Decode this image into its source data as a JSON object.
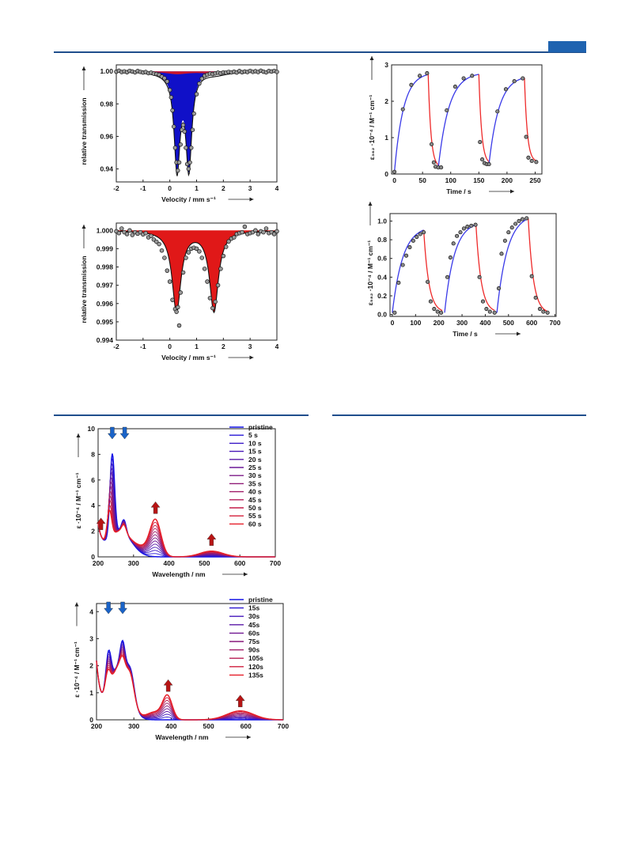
{
  "page": {
    "colors": {
      "rule": "#1f4e8c",
      "tab": "#1f63b0",
      "blue": "#1010c8",
      "red": "#e01818",
      "arrow_blue": "#1a63c8",
      "arrow_red": "#b81414"
    }
  },
  "chart_data": [
    {
      "id": "mossbauer_top",
      "type": "scatter",
      "xlabel": "Velocity / mm s⁻¹",
      "ylabel": "relative transmission",
      "xlim": [
        -2,
        4
      ],
      "ylim": [
        0.932,
        1.004
      ],
      "xticks": [
        "-2",
        "-1",
        "0",
        "1",
        "2",
        "3",
        "4"
      ],
      "yticks": [
        "0.94",
        "0.96",
        "0.98",
        "1.00"
      ],
      "baseline": 1.0,
      "blue_doublet": {
        "depth": 0.058,
        "centers": [
          0.27,
          0.71
        ],
        "hwhm": 0.13
      },
      "red_doublet": {
        "depth": 0.0016,
        "centers": [
          0.27,
          1.75
        ],
        "hwhm": 0.5
      },
      "points": [
        [
          -2,
          0.9998
        ],
        [
          -1.9,
          1.0004
        ],
        [
          -1.8,
          0.9996
        ],
        [
          -1.7,
          1.0
        ],
        [
          -1.6,
          0.9995
        ],
        [
          -1.5,
          1.0003
        ],
        [
          -1.4,
          0.9999
        ],
        [
          -1.3,
          0.9994
        ],
        [
          -1.2,
          1.0002
        ],
        [
          -1.1,
          0.9997
        ],
        [
          -1.0,
          0.9993
        ],
        [
          -0.9,
          0.9996
        ],
        [
          -0.8,
          0.9989
        ],
        [
          -0.7,
          0.9992
        ],
        [
          -0.6,
          0.9986
        ],
        [
          -0.5,
          0.9984
        ],
        [
          -0.4,
          0.9979
        ],
        [
          -0.3,
          0.9968
        ],
        [
          -0.2,
          0.9958
        ],
        [
          -0.1,
          0.9938
        ],
        [
          0.0,
          0.9885
        ],
        [
          0.05,
          0.984
        ],
        [
          0.1,
          0.976
        ],
        [
          0.15,
          0.966
        ],
        [
          0.2,
          0.953
        ],
        [
          0.25,
          0.944
        ],
        [
          0.3,
          0.939
        ],
        [
          0.35,
          0.944
        ],
        [
          0.4,
          0.955
        ],
        [
          0.45,
          0.964
        ],
        [
          0.5,
          0.967
        ],
        [
          0.55,
          0.963
        ],
        [
          0.6,
          0.953
        ],
        [
          0.65,
          0.943
        ],
        [
          0.7,
          0.94
        ],
        [
          0.75,
          0.944
        ],
        [
          0.8,
          0.953
        ],
        [
          0.85,
          0.964
        ],
        [
          0.9,
          0.974
        ],
        [
          1.0,
          0.986
        ],
        [
          1.1,
          0.9925
        ],
        [
          1.2,
          0.9955
        ],
        [
          1.3,
          0.9973
        ],
        [
          1.4,
          0.998
        ],
        [
          1.5,
          0.9986
        ],
        [
          1.6,
          0.9984
        ],
        [
          1.7,
          0.9988
        ],
        [
          1.8,
          0.9992
        ],
        [
          1.9,
          0.9988
        ],
        [
          2.0,
          0.9994
        ],
        [
          2.1,
          0.9992
        ],
        [
          2.2,
          0.9997
        ],
        [
          2.3,
          0.9994
        ],
        [
          2.4,
          0.9998
        ],
        [
          2.5,
          0.9993
        ],
        [
          2.6,
          1.0002
        ],
        [
          2.7,
          0.9995
        ],
        [
          2.8,
          0.9999
        ],
        [
          2.9,
          0.9996
        ],
        [
          3.0,
          1.0003
        ],
        [
          3.1,
          0.9997
        ],
        [
          3.2,
          1.0001
        ],
        [
          3.3,
          0.9996
        ],
        [
          3.4,
          1.0004
        ],
        [
          3.5,
          0.9998
        ],
        [
          3.6,
          0.9994
        ],
        [
          3.7,
          1.0002
        ],
        [
          3.8,
          0.9999
        ],
        [
          3.9,
          1.0003
        ],
        [
          4.0,
          0.9997
        ]
      ]
    },
    {
      "id": "mossbauer_bottom",
      "type": "scatter",
      "xlabel": "Velocity / mm s⁻¹",
      "ylabel": "relative transmission",
      "xlim": [
        -2,
        4
      ],
      "ylim": [
        0.994,
        1.0004
      ],
      "xticks": [
        "-2",
        "-1",
        "0",
        "1",
        "2",
        "3",
        "4"
      ],
      "yticks": [
        "0.994",
        "0.995",
        "0.996",
        "0.997",
        "0.998",
        "0.999",
        "1.000"
      ],
      "baseline": 1.0,
      "red_doublet": {
        "depth": 0.0044,
        "centers": [
          0.25,
          1.65
        ],
        "hwhm": 0.2
      },
      "points": [
        [
          -2,
          0.99995
        ],
        [
          -1.9,
          0.99985
        ],
        [
          -1.8,
          1.0001
        ],
        [
          -1.7,
          0.9999
        ],
        [
          -1.6,
          0.9998
        ],
        [
          -1.5,
          1.0
        ],
        [
          -1.4,
          0.99975
        ],
        [
          -1.3,
          0.9999
        ],
        [
          -1.2,
          0.99982
        ],
        [
          -1.1,
          0.9999
        ],
        [
          -1.0,
          0.99978
        ],
        [
          -0.9,
          0.99985
        ],
        [
          -0.8,
          0.99962
        ],
        [
          -0.7,
          0.9997
        ],
        [
          -0.6,
          0.9995
        ],
        [
          -0.5,
          0.99938
        ],
        [
          -0.4,
          0.99925
        ],
        [
          -0.3,
          0.9989
        ],
        [
          -0.2,
          0.9985
        ],
        [
          -0.1,
          0.9978
        ],
        [
          0.0,
          0.9972
        ],
        [
          0.1,
          0.9962
        ],
        [
          0.2,
          0.9957
        ],
        [
          0.25,
          0.99555
        ],
        [
          0.3,
          0.9958
        ],
        [
          0.35,
          0.9948
        ],
        [
          0.4,
          0.9966
        ],
        [
          0.5,
          0.9977
        ],
        [
          0.6,
          0.9985
        ],
        [
          0.7,
          0.9988
        ],
        [
          0.8,
          0.999
        ],
        [
          0.9,
          0.99905
        ],
        [
          1.0,
          0.999
        ],
        [
          1.1,
          0.99885
        ],
        [
          1.2,
          0.9985
        ],
        [
          1.3,
          0.9979
        ],
        [
          1.4,
          0.9972
        ],
        [
          1.5,
          0.9963
        ],
        [
          1.6,
          0.99575
        ],
        [
          1.7,
          0.9961
        ],
        [
          1.8,
          0.997
        ],
        [
          1.9,
          0.9979
        ],
        [
          2.0,
          0.9986
        ],
        [
          2.1,
          0.9991
        ],
        [
          2.2,
          0.9994
        ],
        [
          2.3,
          0.99955
        ],
        [
          2.4,
          0.99962
        ],
        [
          2.5,
          0.9998
        ],
        [
          2.6,
          0.99985
        ],
        [
          2.7,
          0.9999
        ],
        [
          2.8,
          1.0002
        ],
        [
          2.9,
          0.9998
        ],
        [
          3.0,
          0.99985
        ],
        [
          3.1,
          0.9999
        ],
        [
          3.2,
          1.0
        ],
        [
          3.3,
          0.9998
        ],
        [
          3.4,
          0.99995
        ],
        [
          3.5,
          0.9999
        ],
        [
          3.6,
          1.0001
        ],
        [
          3.7,
          0.99985
        ],
        [
          3.8,
          0.9999
        ],
        [
          3.9,
          0.9998
        ],
        [
          4.0,
          0.99995
        ]
      ]
    },
    {
      "id": "kinetics_top",
      "type": "line",
      "xlabel": "Time / s",
      "ylabel": "ε₃₆₂ ·10⁻⁴ / M⁻¹ cm⁻¹",
      "xlim": [
        -5,
        262
      ],
      "ylim": [
        0,
        3
      ],
      "xticks": [
        0,
        50,
        100,
        150,
        200,
        250
      ],
      "yticks": [
        0,
        1,
        2,
        3
      ],
      "cycles": [
        {
          "on": [
            0,
            60
          ],
          "y0": 0.05,
          "ymax": 2.8,
          "tau": 16,
          "off_end": 78,
          "y_end": 0.18
        },
        {
          "on": [
            78,
            150
          ],
          "y0": 0.18,
          "ymax": 2.8,
          "tau": 19,
          "off_end": 168,
          "y_end": 0.27
        },
        {
          "on": [
            168,
            231
          ],
          "y0": 0.27,
          "ymax": 2.72,
          "tau": 18,
          "off_end": 252,
          "y_end": 0.33
        }
      ],
      "tau_off": 5,
      "points": [
        [
          0,
          0.06
        ],
        [
          15,
          1.78
        ],
        [
          30,
          2.45
        ],
        [
          45,
          2.7
        ],
        [
          58,
          2.77
        ],
        [
          66,
          0.82
        ],
        [
          70,
          0.32
        ],
        [
          73,
          0.2
        ],
        [
          78,
          0.18
        ],
        [
          83,
          0.18
        ],
        [
          93,
          1.75
        ],
        [
          108,
          2.4
        ],
        [
          123,
          2.63
        ],
        [
          138,
          2.7
        ],
        [
          152,
          0.88
        ],
        [
          156,
          0.4
        ],
        [
          160,
          0.3
        ],
        [
          164,
          0.27
        ],
        [
          168,
          0.27
        ],
        [
          183,
          1.72
        ],
        [
          198,
          2.33
        ],
        [
          213,
          2.55
        ],
        [
          228,
          2.63
        ],
        [
          234,
          1.02
        ],
        [
          238,
          0.45
        ],
        [
          244,
          0.36
        ],
        [
          252,
          0.33
        ]
      ]
    },
    {
      "id": "kinetics_bottom",
      "type": "line",
      "xlabel": "Time / s",
      "ylabel": "ε₅₈₂ ·10⁻⁴ / M⁻¹ cm⁻¹",
      "xlim": [
        -10,
        705
      ],
      "ylim": [
        -0.02,
        1.08
      ],
      "xticks": [
        0,
        100,
        200,
        300,
        400,
        500,
        600,
        700
      ],
      "yticks": [
        "0.0",
        "0.2",
        "0.4",
        "0.6",
        "0.8",
        "1.0"
      ],
      "cycles": [
        {
          "on": [
            0,
            135
          ],
          "y0": 0.02,
          "ymax": 0.95,
          "tau": 45,
          "off_end": 215,
          "y_end": 0.02
        },
        {
          "on": [
            225,
            360
          ],
          "y0": 0.02,
          "ymax": 1.0,
          "tau": 42,
          "off_end": 440,
          "y_end": 0.02
        },
        {
          "on": [
            450,
            585
          ],
          "y0": 0.02,
          "ymax": 1.08,
          "tau": 45,
          "off_end": 670,
          "y_end": 0.01
        }
      ],
      "tau_off": 22,
      "points": [
        [
          10,
          0.02
        ],
        [
          27,
          0.34
        ],
        [
          45,
          0.53
        ],
        [
          60,
          0.63
        ],
        [
          75,
          0.72
        ],
        [
          90,
          0.79
        ],
        [
          105,
          0.83
        ],
        [
          120,
          0.86
        ],
        [
          135,
          0.88
        ],
        [
          152,
          0.35
        ],
        [
          165,
          0.14
        ],
        [
          180,
          0.06
        ],
        [
          195,
          0.03
        ],
        [
          210,
          0.02
        ],
        [
          237,
          0.4
        ],
        [
          250,
          0.61
        ],
        [
          263,
          0.76
        ],
        [
          278,
          0.84
        ],
        [
          293,
          0.88
        ],
        [
          308,
          0.92
        ],
        [
          323,
          0.94
        ],
        [
          340,
          0.95
        ],
        [
          358,
          0.96
        ],
        [
          375,
          0.4
        ],
        [
          390,
          0.14
        ],
        [
          405,
          0.06
        ],
        [
          420,
          0.03
        ],
        [
          440,
          0.02
        ],
        [
          458,
          0.28
        ],
        [
          470,
          0.65
        ],
        [
          485,
          0.79
        ],
        [
          500,
          0.88
        ],
        [
          515,
          0.93
        ],
        [
          530,
          0.97
        ],
        [
          545,
          1.0
        ],
        [
          560,
          1.02
        ],
        [
          578,
          1.03
        ],
        [
          600,
          0.41
        ],
        [
          617,
          0.18
        ],
        [
          635,
          0.06
        ],
        [
          650,
          0.03
        ],
        [
          668,
          0.02
        ]
      ]
    },
    {
      "id": "uvvis_top",
      "type": "line",
      "xlabel": "Wavelength / nm",
      "ylabel": "ε ·10⁻⁴ / M⁻¹ cm⁻¹",
      "xlim": [
        200,
        700
      ],
      "ylim": [
        0,
        10
      ],
      "xticks": [
        200,
        300,
        400,
        500,
        600,
        700
      ],
      "yticks": [
        0,
        2,
        4,
        6,
        8,
        10
      ],
      "series": [
        {
          "name": "pristine"
        },
        {
          "name": "5 s"
        },
        {
          "name": "10 s"
        },
        {
          "name": "15 s"
        },
        {
          "name": "20 s"
        },
        {
          "name": "25 s"
        },
        {
          "name": "30 s"
        },
        {
          "name": "35 s"
        },
        {
          "name": "40 s"
        },
        {
          "name": "45 s"
        },
        {
          "name": "50 s"
        },
        {
          "name": "55 s"
        },
        {
          "name": "60 s"
        }
      ],
      "peaks_start": {
        "p1": [
          240,
          8.5
        ],
        "p2": [
          273,
          3.3
        ],
        "p3": [
          362,
          0.0
        ],
        "p4": [
          520,
          0.0
        ]
      },
      "peaks_end": {
        "p1": [
          232,
          4.3
        ],
        "p2": [
          273,
          2.9
        ],
        "p3": [
          362,
          2.8
        ],
        "p4": [
          520,
          0.45
        ]
      },
      "arrows": [
        {
          "x": 208,
          "dir": "up",
          "color": "red"
        },
        {
          "x": 240,
          "dir": "down",
          "color": "blue"
        },
        {
          "x": 275,
          "dir": "down",
          "color": "blue"
        },
        {
          "x": 362,
          "dir": "up",
          "color": "red"
        },
        {
          "x": 520,
          "dir": "up",
          "color": "red"
        }
      ]
    },
    {
      "id": "uvvis_bottom",
      "type": "line",
      "xlabel": "Wavelength / nm",
      "ylabel": "ε ·10⁻⁴ / M⁻¹ cm⁻¹",
      "xlim": [
        200,
        700
      ],
      "ylim": [
        0,
        4.3
      ],
      "xticks": [
        200,
        300,
        400,
        500,
        600,
        700
      ],
      "yticks": [
        0,
        1,
        2,
        3,
        4
      ],
      "series": [
        {
          "name": "pristine"
        },
        {
          "name": "15s"
        },
        {
          "name": "30s"
        },
        {
          "name": "45s"
        },
        {
          "name": "60s"
        },
        {
          "name": "75s"
        },
        {
          "name": "90s"
        },
        {
          "name": "105s"
        },
        {
          "name": "120s"
        },
        {
          "name": "135s"
        }
      ],
      "peaks_start": {
        "p1": [
          232,
          3.55
        ],
        "p2": [
          270,
          3.25
        ],
        "p3": [
          390,
          0.0
        ],
        "p4": [
          585,
          0.0
        ]
      },
      "peaks_end": {
        "p1": [
          230,
          2.9
        ],
        "p2": [
          270,
          2.7
        ],
        "p3": [
          390,
          0.85
        ],
        "p4": [
          585,
          0.33
        ]
      },
      "arrows": [
        {
          "x": 232,
          "dir": "down",
          "color": "blue"
        },
        {
          "x": 270,
          "dir": "down",
          "color": "blue"
        },
        {
          "x": 392,
          "dir": "up",
          "color": "red"
        },
        {
          "x": 585,
          "dir": "up",
          "color": "red"
        }
      ]
    }
  ]
}
